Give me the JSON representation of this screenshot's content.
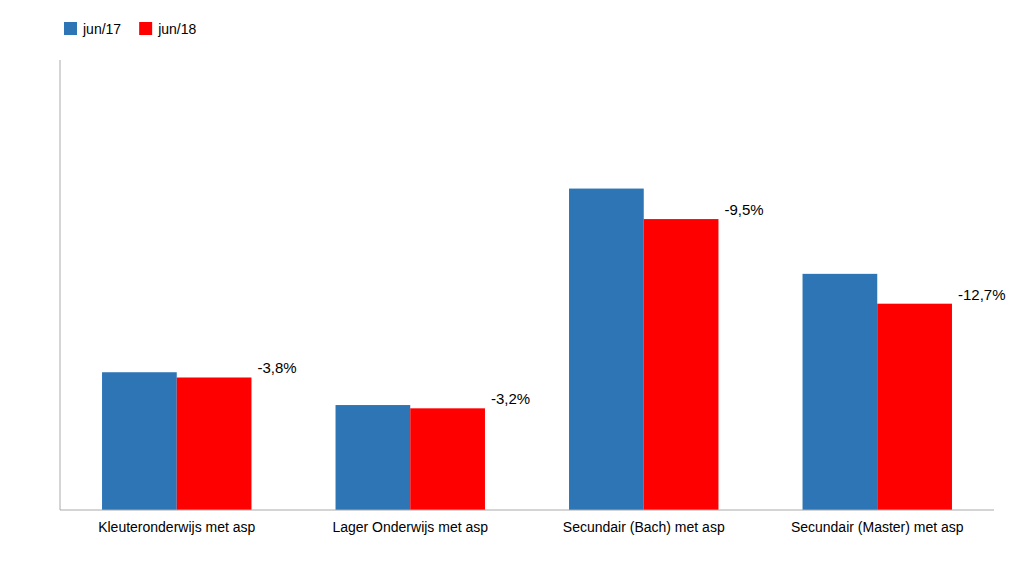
{
  "chart_data": {
    "type": "bar",
    "categories": [
      "Kleuteronderwijs met asp",
      "Lager Onderwijs met asp",
      "Secundair (Bach) met asp",
      "Secundair (Master) met asp"
    ],
    "series": [
      {
        "name": "jun/17",
        "color": "#2E75B6",
        "values": [
          4.2,
          3.2,
          9.8,
          7.2
        ]
      },
      {
        "name": "jun/18",
        "color": "#FF0000",
        "values": [
          4.04,
          3.1,
          8.87,
          6.29
        ]
      }
    ],
    "annotations": [
      "-3,8%",
      "-3,2%",
      "-9,5%",
      "-12,7%"
    ],
    "ylim": [
      0,
      13.72
    ],
    "yticks": [],
    "tick_labels": "x",
    "grid": false,
    "legend": "upper left"
  }
}
